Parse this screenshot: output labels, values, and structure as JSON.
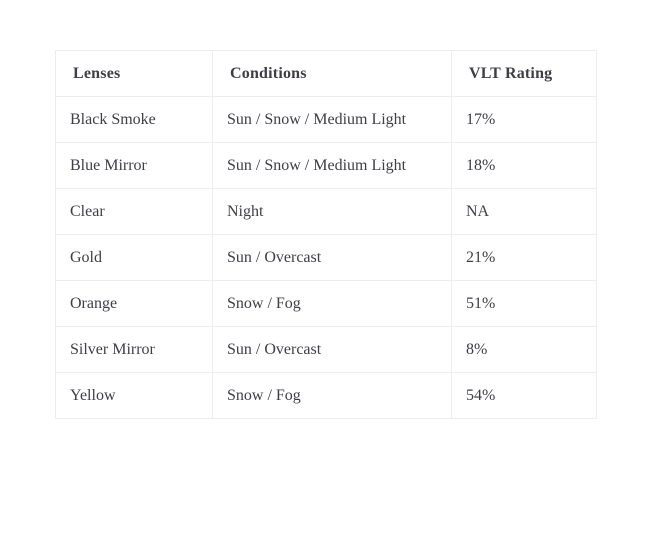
{
  "table": {
    "headers": [
      "Lenses",
      "Conditions",
      "VLT Rating"
    ],
    "rows": [
      {
        "lens": "Black Smoke",
        "conditions": "Sun / Snow / Medium Light",
        "vlt": "17%"
      },
      {
        "lens": "Blue Mirror",
        "conditions": "Sun / Snow / Medium Light",
        "vlt": "18%"
      },
      {
        "lens": "Clear",
        "conditions": "Night",
        "vlt": "NA"
      },
      {
        "lens": "Gold",
        "conditions": "Sun / Overcast",
        "vlt": "21%"
      },
      {
        "lens": "Orange",
        "conditions": "Snow / Fog",
        "vlt": "51%"
      },
      {
        "lens": "Silver Mirror",
        "conditions": "Sun / Overcast",
        "vlt": "8%"
      },
      {
        "lens": "Yellow",
        "conditions": "Snow / Fog",
        "vlt": "54%"
      }
    ],
    "colors": {
      "background": "#ffffff",
      "border": "#f0ebec",
      "text": "#3e3e46"
    }
  }
}
